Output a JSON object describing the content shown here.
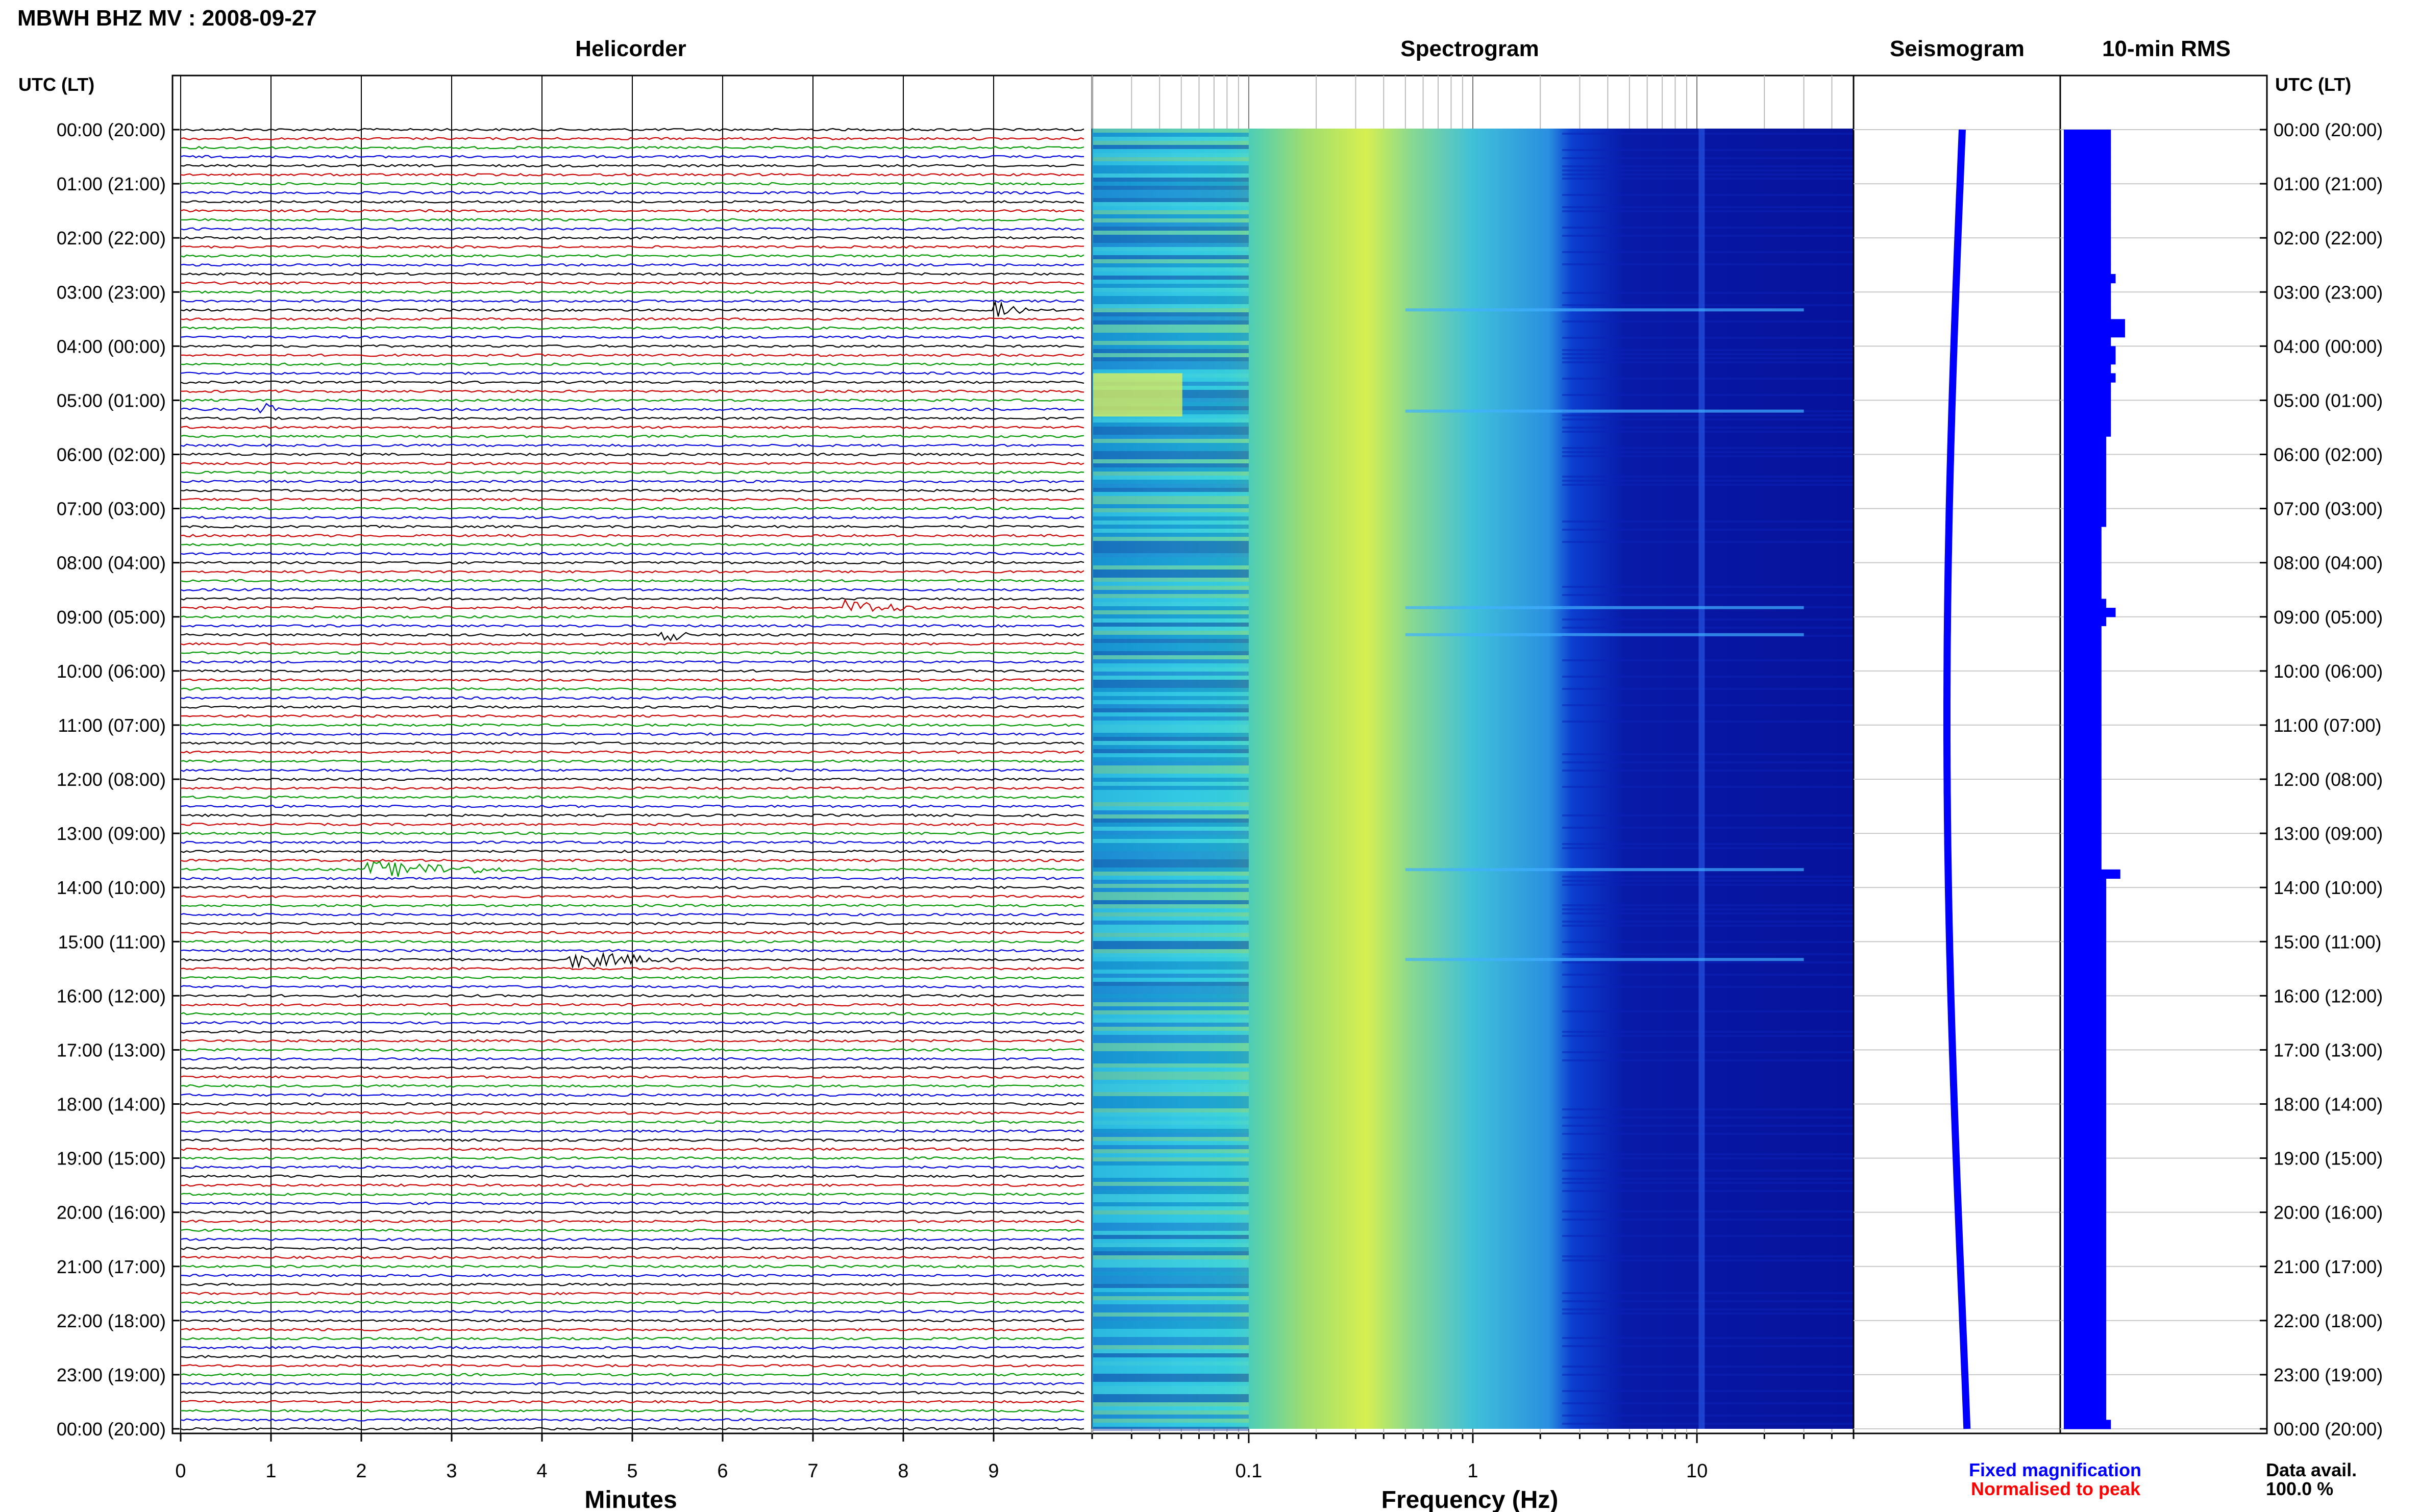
{
  "header": {
    "title": "MBWH BHZ MV : 2008-09-27",
    "left_axis_label": "UTC (LT)",
    "right_axis_label": "UTC (LT)"
  },
  "panels": {
    "helicorder": "Helicorder",
    "spectrogram": "Spectrogram",
    "seismogram": "Seismogram",
    "rms": "10-min RMS"
  },
  "footer": {
    "minutes_label": "Minutes",
    "frequency_label": "Frequency (Hz)",
    "fixed_magnification": "Fixed magnification",
    "normalised_to_peak": "Normalised to peak",
    "data_avail_label": "Data avail.",
    "data_avail_value": "100.0 %"
  },
  "colors": {
    "trace_cycle": [
      "#000000",
      "#cc0000",
      "#009900",
      "#0000dd"
    ],
    "rms_bar": "#0000ff",
    "fixed_mag": "#0000ff",
    "normalised": "#ff0000",
    "spectro_low": "#00008b",
    "spectro_high": "#ffff00"
  },
  "chart_data": [
    {
      "type": "line",
      "title": "Helicorder",
      "xlabel": "Minutes",
      "x_ticks": [
        "0",
        "1",
        "2",
        "3",
        "4",
        "5",
        "6",
        "7",
        "8",
        "9"
      ],
      "xlim": [
        0,
        10
      ],
      "y_ticks": [
        "00:00 (20:00)",
        "01:00 (21:00)",
        "02:00 (22:00)",
        "03:00 (23:00)",
        "04:00 (00:00)",
        "05:00 (01:00)",
        "06:00 (02:00)",
        "07:00 (03:00)",
        "08:00 (04:00)",
        "09:00 (05:00)",
        "10:00 (06:00)",
        "11:00 (07:00)",
        "12:00 (08:00)",
        "13:00 (09:00)",
        "14:00 (10:00)",
        "15:00 (11:00)",
        "16:00 (12:00)",
        "17:00 (13:00)",
        "18:00 (14:00)",
        "19:00 (15:00)",
        "20:00 (16:00)",
        "21:00 (17:00)",
        "22:00 (18:00)",
        "23:00 (19:00)",
        "00:00 (20:00)"
      ],
      "rows_per_hour": 6,
      "events": [
        {
          "hour": 5.2,
          "start_min": 0.85,
          "duration_min": 0.25
        },
        {
          "hour": 9.33,
          "start_min": 5.3,
          "duration_min": 0.4
        },
        {
          "hour": 13.67,
          "start_min": 2.05,
          "duration_min": 1.8
        },
        {
          "hour": 15.33,
          "start_min": 4.3,
          "duration_min": 1.3
        },
        {
          "hour": 3.33,
          "start_min": 9.0,
          "duration_min": 0.4
        },
        {
          "hour": 8.83,
          "start_min": 7.3,
          "duration_min": 0.9
        }
      ]
    },
    {
      "type": "heatmap",
      "title": "Spectrogram",
      "xlabel": "Frequency (Hz)",
      "x_scale": "log",
      "xlim": [
        0.02,
        50
      ],
      "x_ticks": [
        "0.1",
        "1",
        "10"
      ],
      "peak_band_hz": 0.3,
      "noise_corner_hz": 3
    },
    {
      "type": "line",
      "title": "Seismogram"
    },
    {
      "type": "bar",
      "title": "10-min RMS",
      "values": [
        1.0,
        1.0,
        1.0,
        1.0,
        1.0,
        1.0,
        1.0,
        1.0,
        1.0,
        1.0,
        1.0,
        1.0,
        1.0,
        1.0,
        1.0,
        1.0,
        1.1,
        1.0,
        1.0,
        1.0,
        1.0,
        1.3,
        1.3,
        1.0,
        1.1,
        1.1,
        1.0,
        1.1,
        1.0,
        1.0,
        1.0,
        1.0,
        1.0,
        1.0,
        0.9,
        0.9,
        0.9,
        0.9,
        0.9,
        0.9,
        0.9,
        0.9,
        0.9,
        0.9,
        0.8,
        0.8,
        0.8,
        0.8,
        0.8,
        0.8,
        0.8,
        0.8,
        0.9,
        1.1,
        0.9,
        0.8,
        0.8,
        0.8,
        0.8,
        0.8,
        0.8,
        0.8,
        0.8,
        0.8,
        0.8,
        0.8,
        0.8,
        0.8,
        0.8,
        0.8,
        0.8,
        0.8,
        0.8,
        0.8,
        0.8,
        0.8,
        0.8,
        0.8,
        0.8,
        0.8,
        0.8,
        0.8,
        1.2,
        0.9,
        0.9,
        0.9,
        0.9,
        0.9,
        0.9,
        0.9,
        0.9,
        0.9,
        0.9,
        0.9,
        0.9,
        0.9,
        0.9,
        0.9,
        0.9,
        0.9,
        0.9,
        0.9,
        0.9,
        0.9,
        0.9,
        0.9,
        0.9,
        0.9,
        0.9,
        0.9,
        0.9,
        0.9,
        0.9,
        0.9,
        0.9,
        0.9,
        0.9,
        0.9,
        0.9,
        0.9,
        0.9,
        0.9,
        0.9,
        0.9,
        0.9,
        0.9,
        0.9,
        0.9,
        0.9,
        0.9,
        0.9,
        0.9,
        0.9,
        0.9,
        0.9,
        0.9,
        0.9,
        0.9,
        0.9,
        0.9,
        0.9,
        0.9,
        0.9,
        1.0
      ]
    }
  ]
}
